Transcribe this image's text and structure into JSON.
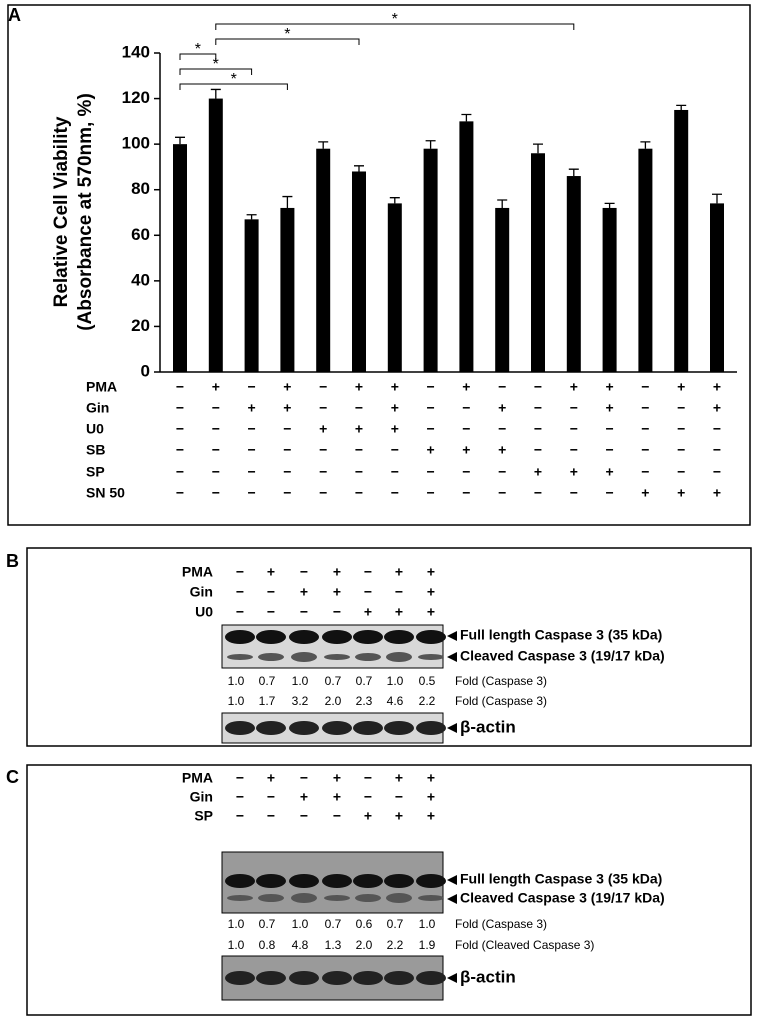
{
  "chart_data": {
    "type": "bar",
    "panel_label": "A",
    "ylabel": [
      "Relative Cell Viability",
      "(Absorbance at 570nm, %)"
    ],
    "ylim": [
      0,
      140
    ],
    "yticks": [
      0,
      20,
      40,
      60,
      80,
      100,
      120,
      140
    ],
    "color": "#000000",
    "values": [
      100,
      120,
      67,
      72,
      98,
      88,
      74,
      98,
      110,
      72,
      96,
      86,
      72,
      98,
      115,
      74
    ],
    "errors": [
      3,
      4,
      2,
      5,
      3,
      2.5,
      2.5,
      3.5,
      3,
      3.5,
      4,
      3,
      2,
      3,
      2,
      4
    ],
    "annotations": [
      "*",
      "*",
      "*",
      "*",
      "*"
    ],
    "treatments": [
      {
        "name": "PMA",
        "signs": [
          "−",
          "+",
          "−",
          "+",
          "−",
          "+",
          "+",
          "−",
          "+",
          "−",
          "−",
          "+",
          "+",
          "−",
          "+",
          "+"
        ]
      },
      {
        "name": "Gin",
        "signs": [
          "−",
          "−",
          "+",
          "+",
          "−",
          "−",
          "+",
          "−",
          "−",
          "+",
          "−",
          "−",
          "+",
          "−",
          "−",
          "+"
        ]
      },
      {
        "name": "U0",
        "signs": [
          "−",
          "−",
          "−",
          "−",
          "+",
          "+",
          "+",
          "−",
          "−",
          "−",
          "−",
          "−",
          "−",
          "−",
          "−",
          "−"
        ]
      },
      {
        "name": "SB",
        "signs": [
          "−",
          "−",
          "−",
          "−",
          "−",
          "−",
          "−",
          "+",
          "+",
          "+",
          "−",
          "−",
          "−",
          "−",
          "−",
          "−"
        ]
      },
      {
        "name": "SP",
        "signs": [
          "−",
          "−",
          "−",
          "−",
          "−",
          "−",
          "−",
          "−",
          "−",
          "−",
          "+",
          "+",
          "+",
          "−",
          "−",
          "−"
        ]
      },
      {
        "name": "SN 50",
        "signs": [
          "−",
          "−",
          "−",
          "−",
          "−",
          "−",
          "−",
          "−",
          "−",
          "−",
          "−",
          "−",
          "−",
          "+",
          "+",
          "+"
        ]
      }
    ]
  },
  "panel_b": {
    "panel_label": "B",
    "treatments": [
      {
        "name": "PMA",
        "signs": [
          "−",
          "+",
          "−",
          "+",
          "−",
          "+",
          "+"
        ]
      },
      {
        "name": "Gin",
        "signs": [
          "−",
          "−",
          "+",
          "+",
          "−",
          "−",
          "+"
        ]
      },
      {
        "name": "U0",
        "signs": [
          "−",
          "−",
          "−",
          "−",
          "+",
          "+",
          "+"
        ]
      }
    ],
    "blot_labels": [
      "Full length Caspase 3 (35 kDa)",
      "Cleaved Caspase 3 (19/17 kDa)"
    ],
    "fold_rows": [
      {
        "values": [
          "1.0",
          "0.7",
          "1.0",
          "0.7",
          "0.7",
          "1.0",
          "0.5"
        ],
        "label": "Fold (Caspase 3)"
      },
      {
        "values": [
          "1.0",
          "1.7",
          "3.2",
          "2.0",
          "2.3",
          "4.6",
          "2.2"
        ],
        "label": "Fold (Caspase 3)"
      }
    ],
    "actin_label": "β-actin"
  },
  "panel_c": {
    "panel_label": "C",
    "treatments": [
      {
        "name": "PMA",
        "signs": [
          "−",
          "+",
          "−",
          "+",
          "−",
          "+",
          "+"
        ]
      },
      {
        "name": "Gin",
        "signs": [
          "−",
          "−",
          "+",
          "+",
          "−",
          "−",
          "+"
        ]
      },
      {
        "name": "SP",
        "signs": [
          "−",
          "−",
          "−",
          "−",
          "+",
          "+",
          "+"
        ]
      }
    ],
    "blot_labels": [
      "Full length Caspase 3 (35 kDa)",
      "Cleaved Caspase 3 (19/17 kDa)"
    ],
    "fold_rows": [
      {
        "values": [
          "1.0",
          "0.7",
          "1.0",
          "0.7",
          "0.6",
          "0.7",
          "1.0"
        ],
        "label": "Fold (Caspase 3)"
      },
      {
        "values": [
          "1.0",
          "0.8",
          "4.8",
          "1.3",
          "2.0",
          "2.2",
          "1.9"
        ],
        "label": "Fold (Cleaved Caspase 3)"
      }
    ],
    "actin_label": "β-actin"
  }
}
